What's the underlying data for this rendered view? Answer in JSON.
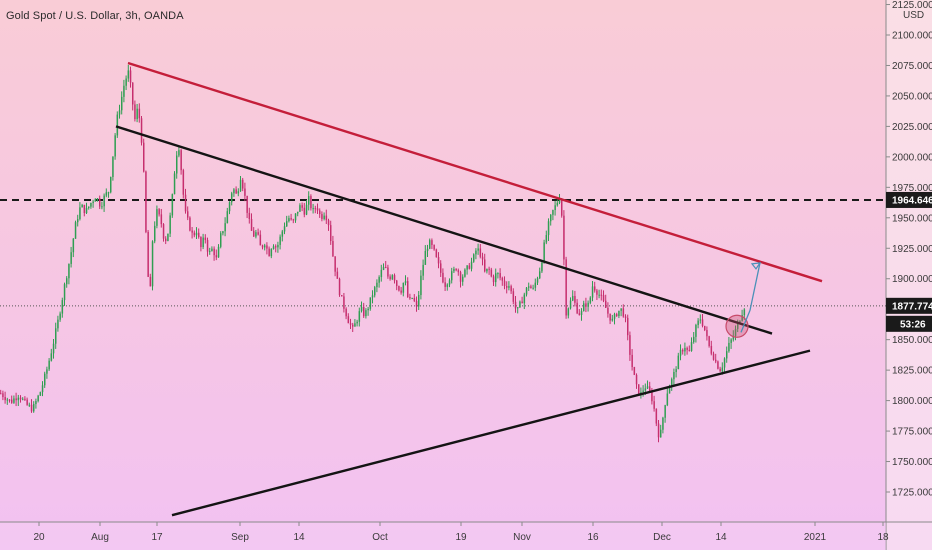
{
  "chart_data": {
    "type": "candlestick",
    "title": "Gold Spot / U.S. Dollar, 3h, OANDA",
    "currency_label": "USD",
    "ylim": [
      1705,
      2133
    ],
    "y_ticks": [
      "1725.000",
      "1750.000",
      "1775.000",
      "1800.000",
      "1825.000",
      "1850.000",
      "1875.000",
      "1900.000",
      "1925.000",
      "1950.000",
      "1975.000",
      "2000.000",
      "2025.000",
      "2050.000",
      "2075.000",
      "2100.000",
      "2125.000"
    ],
    "x_ticks": [
      "20",
      "Aug",
      "17",
      "Sep",
      "14",
      "Oct",
      "19",
      "Nov",
      "16",
      "Dec",
      "14",
      "2021",
      "18"
    ],
    "x_range": [
      0,
      1000
    ],
    "x_tick_positions": [
      39,
      100,
      157,
      240,
      299,
      380,
      461,
      522,
      593,
      662,
      721,
      815,
      883
    ],
    "price_path": [
      [
        0,
        1806
      ],
      [
        10,
        1799
      ],
      [
        18,
        1805
      ],
      [
        25,
        1797
      ],
      [
        32,
        1793
      ],
      [
        40,
        1808
      ],
      [
        46,
        1825
      ],
      [
        52,
        1845
      ],
      [
        58,
        1868
      ],
      [
        64,
        1895
      ],
      [
        70,
        1920
      ],
      [
        75,
        1945
      ],
      [
        80,
        1960
      ],
      [
        85,
        1955
      ],
      [
        90,
        1962
      ],
      [
        95,
        1968
      ],
      [
        100,
        1960
      ],
      [
        104,
        1968
      ],
      [
        108,
        1972
      ],
      [
        112,
        2000
      ],
      [
        116,
        2030
      ],
      [
        120,
        2045
      ],
      [
        124,
        2062
      ],
      [
        128,
        2070
      ],
      [
        131,
        2050
      ],
      [
        134,
        2030
      ],
      [
        137,
        2040
      ],
      [
        140,
        2025
      ],
      [
        143,
        1985
      ],
      [
        146,
        1920
      ],
      [
        149,
        1880
      ],
      [
        152,
        1935
      ],
      [
        156,
        1955
      ],
      [
        160,
        1948
      ],
      [
        164,
        1930
      ],
      [
        168,
        1940
      ],
      [
        172,
        1970
      ],
      [
        175,
        2000
      ],
      [
        178,
        2010
      ],
      [
        181,
        1985
      ],
      [
        184,
        1955
      ],
      [
        188,
        1945
      ],
      [
        192,
        1935
      ],
      [
        196,
        1940
      ],
      [
        200,
        1925
      ],
      [
        204,
        1935
      ],
      [
        208,
        1920
      ],
      [
        212,
        1925
      ],
      [
        216,
        1915
      ],
      [
        220,
        1935
      ],
      [
        224,
        1945
      ],
      [
        228,
        1960
      ],
      [
        232,
        1975
      ],
      [
        236,
        1968
      ],
      [
        240,
        1985
      ],
      [
        244,
        1968
      ],
      [
        248,
        1948
      ],
      [
        252,
        1935
      ],
      [
        256,
        1938
      ],
      [
        260,
        1925
      ],
      [
        264,
        1930
      ],
      [
        268,
        1920
      ],
      [
        272,
        1930
      ],
      [
        276,
        1925
      ],
      [
        280,
        1935
      ],
      [
        284,
        1945
      ],
      [
        288,
        1950
      ],
      [
        292,
        1945
      ],
      [
        296,
        1955
      ],
      [
        300,
        1960
      ],
      [
        304,
        1955
      ],
      [
        308,
        1965
      ],
      [
        312,
        1955
      ],
      [
        316,
        1960
      ],
      [
        320,
        1950
      ],
      [
        324,
        1955
      ],
      [
        328,
        1945
      ],
      [
        332,
        1920
      ],
      [
        336,
        1900
      ],
      [
        340,
        1885
      ],
      [
        344,
        1875
      ],
      [
        348,
        1865
      ],
      [
        352,
        1858
      ],
      [
        356,
        1866
      ],
      [
        360,
        1875
      ],
      [
        364,
        1870
      ],
      [
        368,
        1878
      ],
      [
        372,
        1888
      ],
      [
        376,
        1895
      ],
      [
        380,
        1905
      ],
      [
        384,
        1910
      ],
      [
        388,
        1900
      ],
      [
        392,
        1905
      ],
      [
        396,
        1895
      ],
      [
        400,
        1890
      ],
      [
        404,
        1900
      ],
      [
        408,
        1880
      ],
      [
        412,
        1885
      ],
      [
        416,
        1875
      ],
      [
        420,
        1900
      ],
      [
        424,
        1920
      ],
      [
        428,
        1930
      ],
      [
        432,
        1925
      ],
      [
        436,
        1915
      ],
      [
        440,
        1905
      ],
      [
        444,
        1895
      ],
      [
        448,
        1900
      ],
      [
        452,
        1905
      ],
      [
        456,
        1910
      ],
      [
        460,
        1900
      ],
      [
        464,
        1905
      ],
      [
        468,
        1910
      ],
      [
        472,
        1915
      ],
      [
        476,
        1925
      ],
      [
        480,
        1920
      ],
      [
        484,
        1905
      ],
      [
        488,
        1908
      ],
      [
        492,
        1898
      ],
      [
        496,
        1905
      ],
      [
        500,
        1900
      ],
      [
        504,
        1895
      ],
      [
        508,
        1895
      ],
      [
        512,
        1885
      ],
      [
        516,
        1872
      ],
      [
        520,
        1880
      ],
      [
        524,
        1888
      ],
      [
        528,
        1895
      ],
      [
        532,
        1890
      ],
      [
        536,
        1900
      ],
      [
        540,
        1910
      ],
      [
        544,
        1930
      ],
      [
        548,
        1945
      ],
      [
        552,
        1955
      ],
      [
        556,
        1962
      ],
      [
        559,
        1968
      ],
      [
        562,
        1945
      ],
      [
        565,
        1872
      ],
      [
        568,
        1878
      ],
      [
        572,
        1885
      ],
      [
        576,
        1875
      ],
      [
        580,
        1870
      ],
      [
        584,
        1880
      ],
      [
        588,
        1878
      ],
      [
        592,
        1895
      ],
      [
        596,
        1890
      ],
      [
        600,
        1885
      ],
      [
        604,
        1878
      ],
      [
        608,
        1870
      ],
      [
        612,
        1865
      ],
      [
        616,
        1872
      ],
      [
        620,
        1875
      ],
      [
        624,
        1870
      ],
      [
        628,
        1845
      ],
      [
        632,
        1825
      ],
      [
        636,
        1810
      ],
      [
        640,
        1805
      ],
      [
        644,
        1812
      ],
      [
        648,
        1808
      ],
      [
        652,
        1800
      ],
      [
        656,
        1780
      ],
      [
        659,
        1768
      ],
      [
        662,
        1785
      ],
      [
        665,
        1802
      ],
      [
        668,
        1812
      ],
      [
        672,
        1818
      ],
      [
        676,
        1830
      ],
      [
        680,
        1840
      ],
      [
        684,
        1845
      ],
      [
        688,
        1838
      ],
      [
        692,
        1850
      ],
      [
        696,
        1862
      ],
      [
        700,
        1868
      ],
      [
        704,
        1858
      ],
      [
        708,
        1845
      ],
      [
        712,
        1838
      ],
      [
        716,
        1830
      ],
      [
        720,
        1825
      ],
      [
        724,
        1835
      ],
      [
        728,
        1845
      ],
      [
        732,
        1852
      ],
      [
        736,
        1860
      ],
      [
        740,
        1870
      ],
      [
        744,
        1878
      ]
    ],
    "trendlines": [
      {
        "color": "#c41e3a",
        "from": [
          128,
          2077
        ],
        "to": [
          822,
          1898
        ]
      },
      {
        "color": "#141414",
        "from": [
          116,
          2025
        ],
        "to": [
          772,
          1855
        ]
      },
      {
        "color": "#141414",
        "from": [
          172,
          1706
        ],
        "to": [
          810,
          1841
        ]
      }
    ],
    "horizontal_levels": [
      {
        "value": 1964.646,
        "label": "1964.646",
        "style": "dashed",
        "color": "#1a1a1a"
      },
      {
        "value": 1877.774,
        "label": "1877.774",
        "style": "dotted",
        "color": "#555555"
      }
    ],
    "countdown_label": "53:26",
    "highlight_circle": {
      "center": [
        737,
        1861
      ],
      "color": "#c84a6a"
    },
    "projection_arrow": {
      "from": [
        741,
        1856
      ],
      "to": [
        760,
        1913
      ],
      "color": "#4a90b8"
    }
  }
}
